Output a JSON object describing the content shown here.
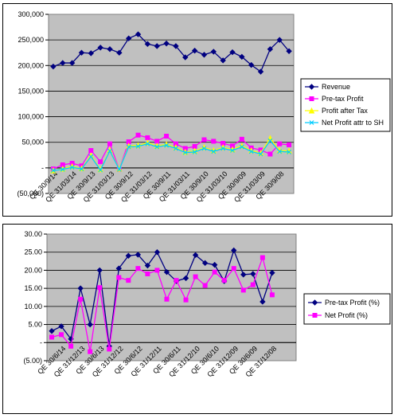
{
  "chart_data": [
    {
      "type": "line",
      "title": "",
      "xlabel": "",
      "ylabel": "",
      "ylim": [
        -50000,
        300000
      ],
      "yticks": [
        -50000,
        0,
        50000,
        100000,
        150000,
        200000,
        250000,
        300000
      ],
      "ytick_labels": [
        "(50,000)",
        "-",
        "50,000",
        "100,000",
        "150,000",
        "200,000",
        "250,000",
        "300,000"
      ],
      "grid": true,
      "legend": "right",
      "plot_bg": "#c0c0c0",
      "categories": [
        "QE 30/9/14",
        "QE 30/6/14",
        "QE 31/03/14",
        "QE 31/12/13",
        "QE 30/9/13",
        "QE 30/6/13",
        "QE 31/03/13",
        "QE 31/12/12",
        "QE 30/9/12",
        "QE 30/6/12",
        "QE 31/03/12",
        "QE 31/12/11",
        "QE 30/9/11",
        "QE 30/6/11",
        "QE 31/03/11",
        "QE 31/12/10",
        "QE 30/9/10",
        "QE 30/6/10",
        "QE 31/03/10",
        "QE 31/12/09",
        "QE 30/9/09",
        "QE 30/6/09",
        "QE 31/03/09",
        "QE 31/12/08",
        "QE 30/9/08",
        "QE 30/6/08"
      ],
      "category_labels": [
        "QE 30/9/14",
        "QE 31/03/14",
        "QE 30/9/13",
        "QE 31/03/13",
        "QE 30/9/12",
        "QE 31/03/12",
        "QE 30/9/11",
        "QE 31/03/11",
        "QE 30/9/10",
        "QE 31/03/10",
        "QE 30/9/09",
        "QE 31/03/09",
        "QE 30/9/08"
      ],
      "series": [
        {
          "name": "Revenue",
          "color": "#000080",
          "marker": "diamond",
          "values": [
            198000,
            205000,
            205000,
            225000,
            224000,
            235000,
            232000,
            225000,
            253000,
            261000,
            242000,
            238000,
            243000,
            238000,
            216000,
            229000,
            221000,
            227000,
            210000,
            226000,
            217000,
            201000,
            188000,
            232000,
            250000,
            228000
          ]
        },
        {
          "name": "Pre-tax Profit",
          "color": "#ff00ff",
          "marker": "square",
          "values": [
            -2000,
            6000,
            9000,
            4000,
            34000,
            12000,
            47000,
            -3000,
            51000,
            64000,
            59000,
            52000,
            62000,
            47000,
            38000,
            42000,
            55000,
            52000,
            48000,
            43000,
            56000,
            39000,
            35000,
            27000,
            47000,
            45000
          ]
        },
        {
          "name": "Profit after Tax",
          "color": "#ffff00",
          "marker": "triangle",
          "values": [
            -5000,
            -2000,
            3000,
            -1000,
            24000,
            -3000,
            35000,
            -2000,
            43000,
            44000,
            49000,
            43000,
            46000,
            40000,
            31000,
            33000,
            40000,
            34000,
            40000,
            36000,
            43000,
            34000,
            29000,
            58000,
            34000,
            33000
          ]
        },
        {
          "name": "Net Profit attr to SH",
          "color": "#00ccff",
          "marker": "x",
          "values": [
            -5000,
            -3000,
            1000,
            -2000,
            22000,
            -4000,
            33000,
            -3000,
            41000,
            42000,
            47000,
            41000,
            44000,
            38000,
            30000,
            31000,
            38000,
            32000,
            38000,
            34000,
            41000,
            32000,
            27000,
            53000,
            32000,
            31000
          ]
        }
      ]
    },
    {
      "type": "line",
      "title": "",
      "xlabel": "",
      "ylabel": "",
      "ylim": [
        -5,
        30
      ],
      "yticks": [
        -5,
        0,
        5,
        10,
        15,
        20,
        25,
        30
      ],
      "ytick_labels": [
        "(5.00)",
        "-",
        "5.00",
        "10.00",
        "15.00",
        "20.00",
        "25.00",
        "30.00"
      ],
      "grid": true,
      "legend": "right",
      "plot_bg": "#c0c0c0",
      "categories": [
        "QE 30/9/14",
        "QE 30/6/14",
        "QE 31/03/14",
        "QE 31/12/13",
        "QE 30/9/13",
        "QE 30/6/13",
        "QE 31/03/13",
        "QE 31/12/12",
        "QE 30/9/12",
        "QE 30/6/12",
        "QE 31/03/12",
        "QE 31/12/11",
        "QE 30/9/11",
        "QE 30/6/11",
        "QE 31/03/11",
        "QE 31/12/10",
        "QE 30/9/10",
        "QE 30/6/10",
        "QE 31/03/10",
        "QE 31/12/09",
        "QE 30/9/09",
        "QE 30/6/09",
        "QE 31/03/09",
        "QE 31/12/08",
        "QE 30/9/08",
        "QE 30/6/08"
      ],
      "category_labels": [
        "QE 30/6/14",
        "QE 31/12/13",
        "QE 30/6/13",
        "QE 31/12/12",
        "QE 30/6/12",
        "QE 31/12/11",
        "QE 30/6/11",
        "QE 31/12/10",
        "QE 30/6/10",
        "QE 31/12/09",
        "QE 30/6/09",
        "QE 31/12/08"
      ],
      "series": [
        {
          "name": "Pre-tax Profit (%)",
          "color": "#000080",
          "marker": "diamond",
          "values": [
            3.2,
            4.5,
            1.0,
            15.0,
            5.0,
            20.0,
            -1.0,
            20.5,
            24.0,
            24.3,
            21.3,
            25.0,
            19.5,
            17.0,
            17.8,
            24.2,
            22.0,
            21.5,
            17.0,
            25.5,
            18.8,
            19.0,
            11.3,
            19.3,
            null,
            null
          ]
        },
        {
          "name": "Net Profit (%)",
          "color": "#ff00ff",
          "marker": "square",
          "values": [
            1.5,
            2.2,
            -1.0,
            12.0,
            -2.5,
            15.2,
            -1.8,
            18.0,
            17.2,
            20.5,
            19.0,
            20.0,
            12.0,
            17.2,
            11.8,
            18.2,
            15.8,
            19.5,
            17.2,
            20.5,
            14.5,
            16.0,
            23.5,
            13.2,
            null,
            null
          ]
        }
      ]
    }
  ]
}
